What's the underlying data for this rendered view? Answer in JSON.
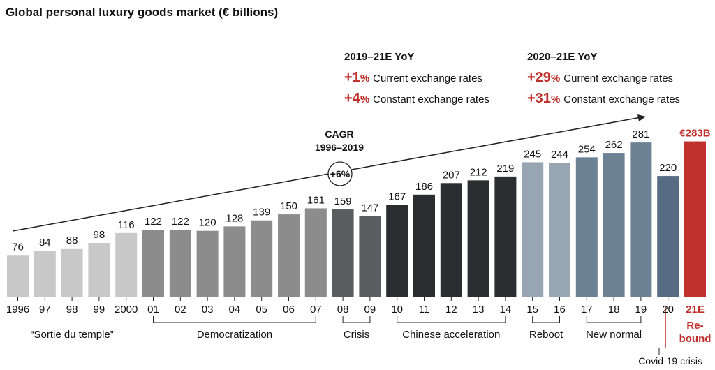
{
  "chart_data": {
    "type": "bar",
    "title": "Global personal luxury goods market (€ billions)",
    "categories": [
      "1996",
      "97",
      "98",
      "99",
      "2000",
      "01",
      "02",
      "03",
      "04",
      "05",
      "06",
      "07",
      "08",
      "09",
      "10",
      "11",
      "12",
      "13",
      "14",
      "15",
      "16",
      "17",
      "18",
      "19",
      "20",
      "21E"
    ],
    "values": [
      76,
      84,
      88,
      98,
      116,
      122,
      122,
      120,
      128,
      139,
      150,
      161,
      159,
      147,
      167,
      186,
      207,
      212,
      219,
      245,
      244,
      254,
      262,
      281,
      220,
      283
    ],
    "value_labels": [
      "76",
      "84",
      "88",
      "98",
      "116",
      "122",
      "122",
      "120",
      "128",
      "139",
      "150",
      "161",
      "159",
      "147",
      "167",
      "186",
      "207",
      "212",
      "219",
      "245",
      "244",
      "254",
      "262",
      "281",
      "220",
      "€283B"
    ],
    "ylim": [
      0,
      300
    ],
    "colors": [
      "#c8c8c8",
      "#c8c8c8",
      "#c8c8c8",
      "#c8c8c8",
      "#c8c8c8",
      "#8c8c8c",
      "#8c8c8c",
      "#8c8c8c",
      "#8c8c8c",
      "#8c8c8c",
      "#8c8c8c",
      "#8c8c8c",
      "#5a5d60",
      "#5a5d60",
      "#2b2d31",
      "#2b2d31",
      "#2b2d31",
      "#2b2d31",
      "#2b2d31",
      "#98a5b2",
      "#98a5b2",
      "#6d8194",
      "#6d8194",
      "#6d8194",
      "#566c83",
      "#c0302d"
    ],
    "highlight_color": "#c0302d",
    "periods": [
      {
        "label": "“Sortie du temple”",
        "start": 0,
        "end": 4,
        "bracket": false
      },
      {
        "label": "Democratization",
        "start": 5,
        "end": 11,
        "bracket": true
      },
      {
        "label": "Crisis",
        "start": 12,
        "end": 13,
        "bracket": true
      },
      {
        "label": "Chinese acceleration",
        "start": 14,
        "end": 18,
        "bracket": true
      },
      {
        "label": "Reboot",
        "start": 19,
        "end": 20,
        "bracket": true
      },
      {
        "label": "New normal",
        "start": 21,
        "end": 23,
        "bracket": true
      }
    ],
    "covid_label": "Covid-19 crisis",
    "rebound_label": [
      "Re-",
      "bound"
    ],
    "cagr": {
      "line1": "CAGR",
      "line2": "1996–2019",
      "value": "+6%"
    },
    "annotations": [
      {
        "heading": "2019–21E YoY",
        "rows": [
          {
            "value": "+1",
            "unit": "%",
            "text": "Current exchange rates"
          },
          {
            "value": "+4",
            "unit": "%",
            "text": "Constant exchange rates"
          }
        ]
      },
      {
        "heading": "2020–21E YoY",
        "rows": [
          {
            "value": "+29",
            "unit": "%",
            "text": "Current exchange rates"
          },
          {
            "value": "+31",
            "unit": "%",
            "text": "Constant exchange rates"
          }
        ]
      }
    ]
  }
}
